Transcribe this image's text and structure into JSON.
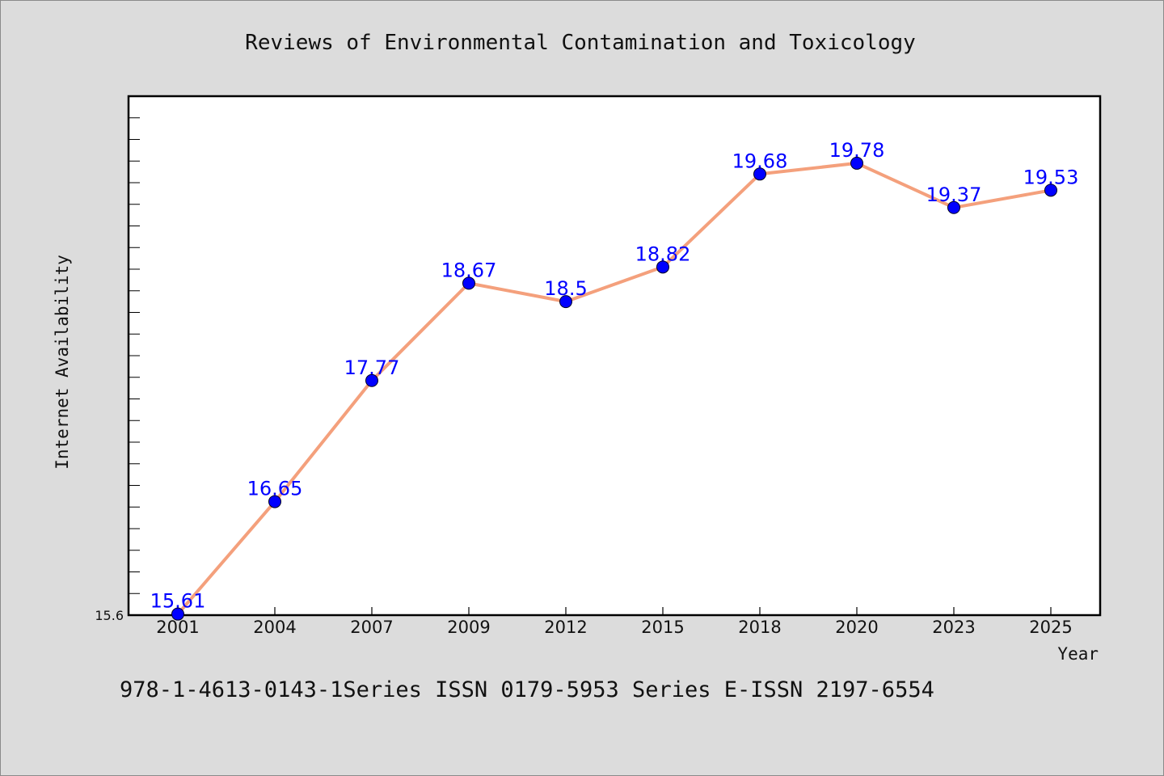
{
  "chart_data": {
    "type": "line",
    "title": "Reviews of Environmental Contamination and Toxicology",
    "xlabel": "Year",
    "ylabel": "Internet Availability",
    "categories": [
      "2001",
      "2004",
      "2007",
      "2009",
      "2012",
      "2015",
      "2018",
      "2020",
      "2023",
      "2025"
    ],
    "series": [
      {
        "values": [
          15.61,
          16.65,
          17.77,
          18.67,
          18.5,
          18.82,
          19.68,
          19.78,
          19.37,
          19.53
        ],
        "labels": [
          "15.61",
          "16.65",
          "17.77",
          "18.67",
          "18.5",
          "18.82",
          "19.68",
          "19.78",
          "19.37",
          "19.53"
        ],
        "line_color": "#f4a07c",
        "marker_color": "#0000ff"
      }
    ],
    "yticks": [
      "15.6"
    ],
    "ylim": [
      15.6,
      20.4
    ],
    "grid": false,
    "legend": "none",
    "footer": "978-1-4613-0143-1Series ISSN 0179-5953 Series E-ISSN 2197-6554"
  }
}
